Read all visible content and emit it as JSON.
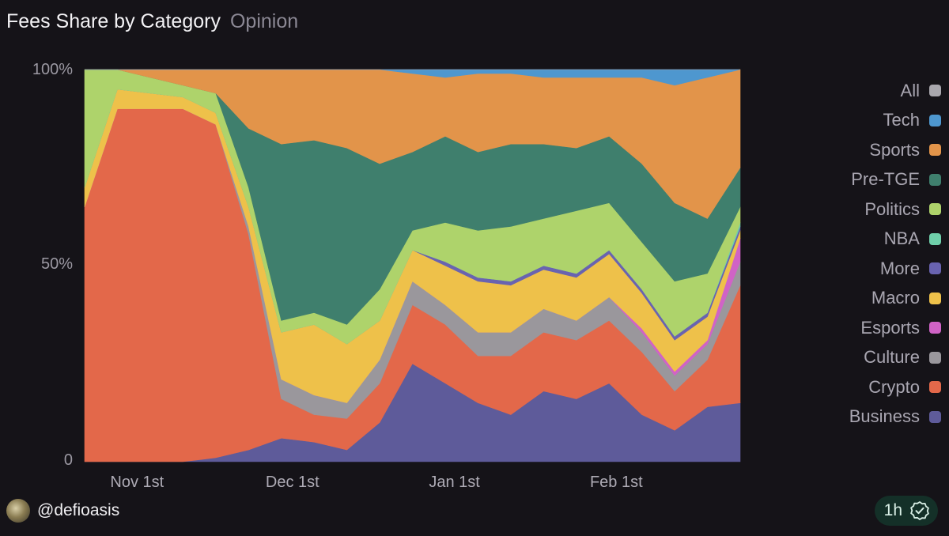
{
  "chart_data": {
    "type": "area",
    "stacked": true,
    "normalized": true,
    "title": "Fees Share by Category",
    "subtitle": "Opinion",
    "y_ticks": [
      "100%",
      "50%",
      "0"
    ],
    "x_ticks": [
      {
        "label": "Nov 1st",
        "t": 0.08
      },
      {
        "label": "Dec 1st",
        "t": 0.317
      },
      {
        "label": "Jan 1st",
        "t": 0.564
      },
      {
        "label": "Feb 1st",
        "t": 0.811
      }
    ],
    "x_range": [
      0,
      1
    ],
    "ylim": [
      0,
      100
    ],
    "legend_position": "right",
    "legend": [
      "All",
      "Tech",
      "Sports",
      "Pre-TGE",
      "Politics",
      "NBA",
      "More",
      "Macro",
      "Esports",
      "Culture",
      "Crypto",
      "Business"
    ],
    "x": [
      0,
      0.05,
      0.1,
      0.15,
      0.2,
      0.25,
      0.3,
      0.35,
      0.4,
      0.45,
      0.5,
      0.55,
      0.6,
      0.65,
      0.7,
      0.75,
      0.8,
      0.85,
      0.9,
      0.95,
      1.0
    ],
    "series": [
      {
        "name": "Business",
        "color": "#5e5b9a",
        "values": [
          0,
          0,
          0,
          0,
          1,
          3,
          6,
          5,
          3,
          10,
          25,
          20,
          15,
          12,
          18,
          16,
          20,
          12,
          8,
          14,
          15
        ]
      },
      {
        "name": "Crypto",
        "color": "#e3684a",
        "values": [
          65,
          90,
          90,
          90,
          85,
          55,
          10,
          7,
          8,
          10,
          15,
          15,
          12,
          15,
          15,
          15,
          16,
          16,
          10,
          12,
          30
        ]
      },
      {
        "name": "Culture",
        "color": "#9a979c",
        "values": [
          0,
          0,
          0,
          0,
          0,
          2,
          5,
          5,
          4,
          6,
          6,
          5,
          6,
          6,
          6,
          5,
          6,
          5,
          4,
          4,
          6
        ]
      },
      {
        "name": "Esports",
        "color": "#d063c6",
        "values": [
          0,
          0,
          0,
          0,
          0,
          0,
          0,
          0,
          0,
          0,
          0,
          0,
          0,
          0,
          0,
          0,
          0,
          1,
          1,
          1,
          6
        ]
      },
      {
        "name": "Macro",
        "color": "#eec14a",
        "values": [
          5,
          5,
          4,
          3,
          3,
          5,
          12,
          18,
          15,
          10,
          8,
          10,
          13,
          12,
          10,
          11,
          11,
          9,
          8,
          6,
          2
        ]
      },
      {
        "name": "More",
        "color": "#6963b0",
        "values": [
          0,
          0,
          0,
          0,
          0,
          0,
          0,
          0,
          0,
          0,
          0,
          1,
          1,
          1,
          1,
          1,
          1,
          1,
          1,
          1,
          1
        ]
      },
      {
        "name": "NBA",
        "color": "#6fcfaa",
        "values": [
          0,
          0,
          0,
          0,
          0,
          0,
          0,
          0,
          0,
          0,
          0,
          0,
          0,
          0,
          0,
          0,
          0,
          0,
          0,
          0,
          1
        ]
      },
      {
        "name": "Politics",
        "color": "#aed36b",
        "values": [
          30,
          5,
          4,
          3,
          5,
          5,
          3,
          3,
          5,
          8,
          5,
          10,
          12,
          14,
          12,
          16,
          12,
          12,
          14,
          10,
          4
        ]
      },
      {
        "name": "Pre-TGE",
        "color": "#3f7f6d",
        "values": [
          0,
          0,
          0,
          0,
          0,
          15,
          45,
          44,
          45,
          32,
          20,
          22,
          20,
          21,
          19,
          16,
          17,
          20,
          20,
          14,
          10
        ]
      },
      {
        "name": "Sports",
        "color": "#e2944a",
        "values": [
          0,
          0,
          2,
          4,
          6,
          15,
          19,
          18,
          20,
          24,
          20,
          15,
          20,
          18,
          17,
          18,
          15,
          22,
          30,
          36,
          25
        ]
      },
      {
        "name": "Tech",
        "color": "#4e97cf",
        "values": [
          0,
          0,
          0,
          0,
          0,
          0,
          0,
          0,
          0,
          0,
          1,
          2,
          1,
          1,
          2,
          2,
          2,
          2,
          4,
          2,
          0
        ]
      },
      {
        "name": "All",
        "color": "#a9a7ad",
        "values": [
          0,
          0,
          0,
          0,
          0,
          0,
          0,
          0,
          0,
          0,
          0,
          0,
          0,
          0,
          0,
          0,
          0,
          0,
          0,
          0,
          0
        ]
      }
    ]
  },
  "colors": {
    "background": "#151318",
    "plot_background": "#ffffff"
  },
  "footer": {
    "handle": "@defioasis",
    "time": "1h",
    "avatar_icon": "avatar-image",
    "verified_icon": "check-badge-icon"
  }
}
